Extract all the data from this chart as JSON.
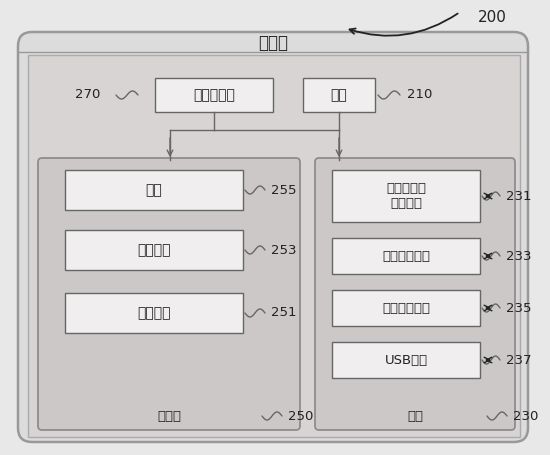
{
  "bg_outer": "#e8e8e8",
  "bg_server": "#e0dede",
  "bg_inner": "#d8d4d4",
  "bg_storage": "#d0cccc",
  "bg_interface": "#d0cccc",
  "fc_box": "#f0eeee",
  "ec_outer": "#888888",
  "ec_box": "#888888",
  "title": "服务器",
  "label_200": "200",
  "label_270": "270",
  "label_210": "210",
  "label_cpu": "中央处理器",
  "label_power": "电源",
  "label_storage": "存储器",
  "label_data": "数据",
  "label_app": "应用程序",
  "label_os": "操作系统",
  "label_255": "255",
  "label_253": "253",
  "label_251": "251",
  "label_250": "250",
  "label_interface": "接口",
  "label_230": "230",
  "label_net": "有线或无线\n网络接口",
  "label_231": "231",
  "label_serial": "串并转换接口",
  "label_233": "233",
  "label_io": "输入输出接口",
  "label_235": "235",
  "label_usb": "USB接口",
  "label_237": "237",
  "lc": "#666666",
  "tc": "#222222"
}
